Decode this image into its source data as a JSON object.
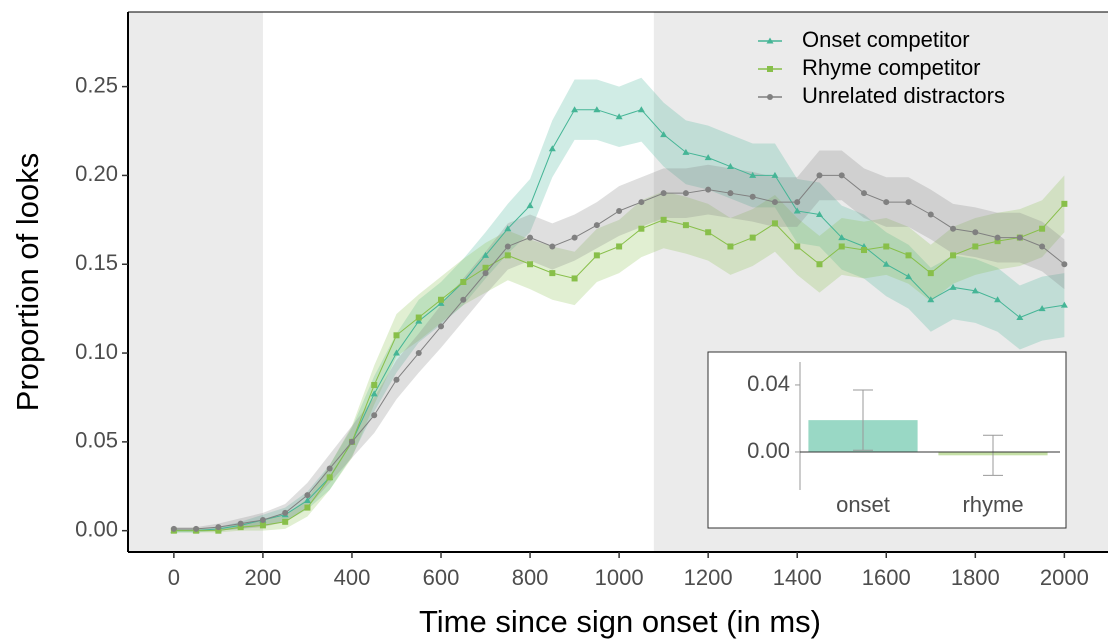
{
  "chart_data": [
    {
      "type": "line",
      "x_label": "Time since sign onset (in ms)",
      "y_label": "Proportion of looks",
      "x": [
        0,
        50,
        100,
        150,
        200,
        250,
        300,
        350,
        400,
        450,
        500,
        550,
        600,
        650,
        700,
        750,
        800,
        850,
        900,
        950,
        1000,
        1050,
        1100,
        1150,
        1200,
        1250,
        1300,
        1350,
        1400,
        1450,
        1500,
        1550,
        1600,
        1650,
        1700,
        1750,
        1800,
        1850,
        1900,
        1950,
        2000
      ],
      "series": [
        {
          "name": "Onset competitor",
          "color": "#45b596",
          "marker": "triangle",
          "values": [
            0,
            0,
            0.001,
            0.003,
            0.006,
            0.009,
            0.017,
            0.03,
            0.05,
            0.077,
            0.1,
            0.118,
            0.128,
            0.14,
            0.155,
            0.17,
            0.183,
            0.215,
            0.237,
            0.237,
            0.233,
            0.237,
            0.223,
            0.213,
            0.21,
            0.205,
            0.2,
            0.2,
            0.18,
            0.178,
            0.165,
            0.16,
            0.15,
            0.143,
            0.13,
            0.137,
            0.135,
            0.13,
            0.12,
            0.125,
            0.127
          ],
          "error": [
            0.001,
            0.001,
            0.001,
            0.002,
            0.003,
            0.004,
            0.005,
            0.007,
            0.008,
            0.01,
            0.011,
            0.012,
            0.012,
            0.013,
            0.013,
            0.014,
            0.015,
            0.016,
            0.017,
            0.017,
            0.017,
            0.018,
            0.018,
            0.018,
            0.018,
            0.018,
            0.018,
            0.018,
            0.018,
            0.018,
            0.018,
            0.018,
            0.018,
            0.018,
            0.018,
            0.018,
            0.018,
            0.018,
            0.018,
            0.018,
            0.018
          ]
        },
        {
          "name": "Rhyme competitor",
          "color": "#88bf4a",
          "marker": "square",
          "values": [
            0,
            0,
            0,
            0.002,
            0.003,
            0.005,
            0.013,
            0.03,
            0.05,
            0.082,
            0.11,
            0.12,
            0.13,
            0.14,
            0.148,
            0.155,
            0.15,
            0.145,
            0.142,
            0.155,
            0.16,
            0.17,
            0.175,
            0.172,
            0.168,
            0.16,
            0.165,
            0.173,
            0.16,
            0.15,
            0.16,
            0.158,
            0.16,
            0.155,
            0.145,
            0.155,
            0.16,
            0.163,
            0.165,
            0.17,
            0.184
          ],
          "error": [
            0.001,
            0.001,
            0.001,
            0.002,
            0.003,
            0.004,
            0.005,
            0.007,
            0.009,
            0.011,
            0.012,
            0.013,
            0.013,
            0.013,
            0.014,
            0.014,
            0.014,
            0.015,
            0.015,
            0.015,
            0.015,
            0.016,
            0.016,
            0.016,
            0.016,
            0.016,
            0.016,
            0.016,
            0.016,
            0.016,
            0.016,
            0.016,
            0.016,
            0.016,
            0.016,
            0.016,
            0.016,
            0.016,
            0.016,
            0.016,
            0.016
          ]
        },
        {
          "name": "Unrelated distractors",
          "color": "#808080",
          "marker": "circle",
          "values": [
            0.001,
            0.001,
            0.002,
            0.004,
            0.006,
            0.01,
            0.02,
            0.035,
            0.05,
            0.065,
            0.085,
            0.1,
            0.115,
            0.13,
            0.145,
            0.16,
            0.165,
            0.16,
            0.165,
            0.172,
            0.18,
            0.185,
            0.19,
            0.19,
            0.192,
            0.19,
            0.188,
            0.185,
            0.185,
            0.2,
            0.2,
            0.19,
            0.185,
            0.185,
            0.178,
            0.17,
            0.168,
            0.165,
            0.165,
            0.16,
            0.15
          ],
          "error": [
            0.001,
            0.001,
            0.002,
            0.003,
            0.004,
            0.005,
            0.007,
            0.008,
            0.009,
            0.01,
            0.011,
            0.011,
            0.012,
            0.012,
            0.012,
            0.013,
            0.013,
            0.013,
            0.013,
            0.013,
            0.014,
            0.014,
            0.014,
            0.014,
            0.014,
            0.014,
            0.014,
            0.014,
            0.014,
            0.014,
            0.014,
            0.014,
            0.014,
            0.014,
            0.014,
            0.014,
            0.014,
            0.014,
            0.014,
            0.014,
            0.014
          ]
        }
      ],
      "shaded_regions": [
        {
          "start": -103,
          "end": 200
        },
        {
          "start": 1078,
          "end": 2098
        }
      ],
      "xlim": [
        -103,
        2098
      ],
      "ylim": [
        -0.012,
        0.292
      ],
      "xticks": [
        0,
        200,
        400,
        600,
        800,
        1000,
        1200,
        1400,
        1600,
        1800,
        2000
      ],
      "yticks": [
        {
          "value": 0,
          "label": "0.00"
        },
        {
          "value": 0.05,
          "label": "0.05"
        },
        {
          "value": 0.1,
          "label": "0.10"
        },
        {
          "value": 0.15,
          "label": "0.15"
        },
        {
          "value": 0.2,
          "label": "0.20"
        },
        {
          "value": 0.25,
          "label": "0.25"
        }
      ],
      "legend": "top-right"
    },
    {
      "type": "bar",
      "categories": [
        "onset",
        "rhyme"
      ],
      "values": [
        0.019,
        -0.002
      ],
      "error": [
        0.018,
        0.012
      ],
      "colors": [
        "#99d8c5",
        "#c5e0a5"
      ],
      "ylim": [
        -0.0227,
        0.0537
      ],
      "yticks": [
        {
          "value": 0,
          "label": "0.00"
        },
        {
          "value": 0.04,
          "label": "0.04"
        }
      ]
    }
  ]
}
